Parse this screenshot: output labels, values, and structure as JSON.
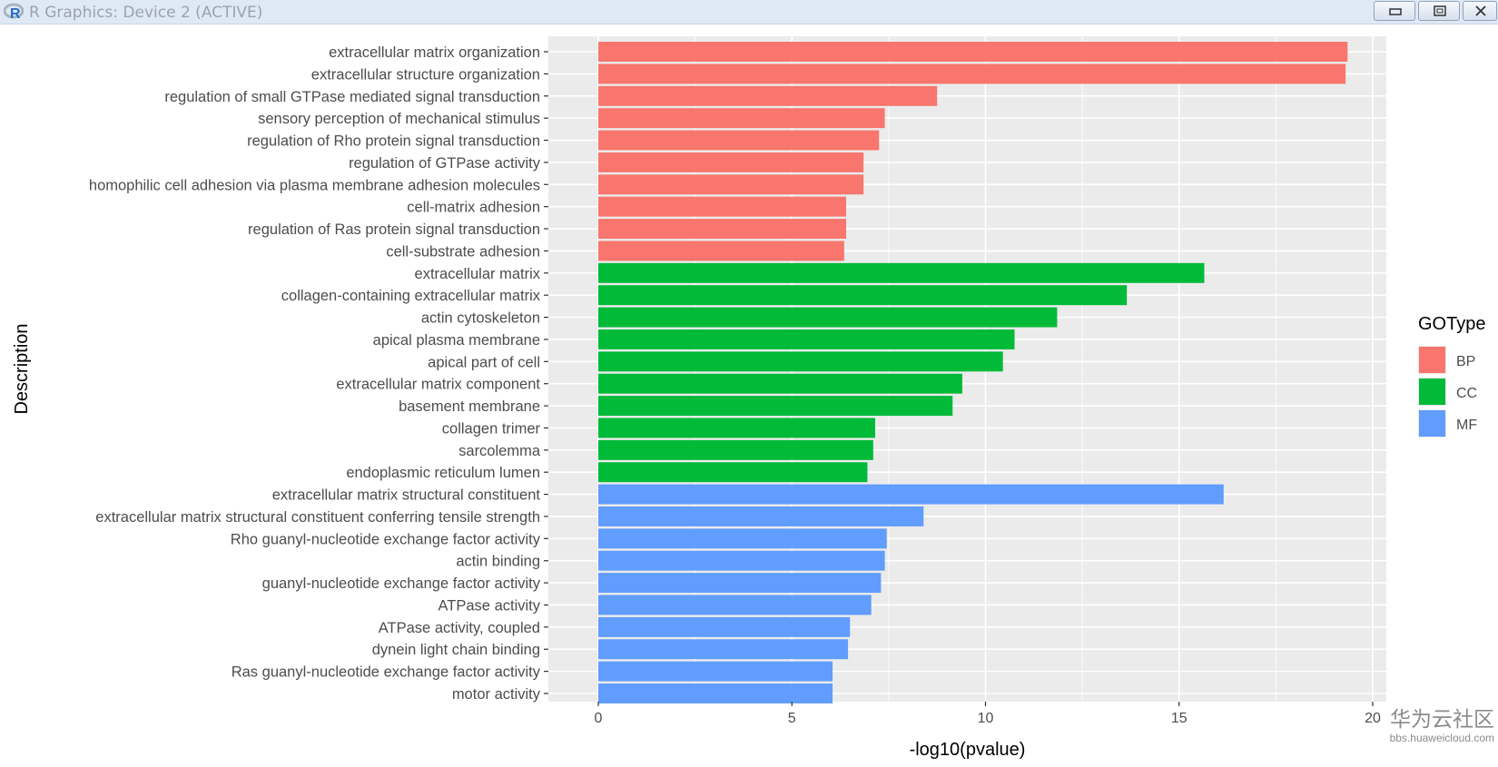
{
  "window": {
    "title": "R Graphics: Device 2 (ACTIVE)"
  },
  "watermark": {
    "brand": "华为云社区",
    "url": "bbs.huaweicloud.com"
  },
  "chart_data": {
    "type": "bar",
    "orientation": "horizontal",
    "xlabel": "-log10(pvalue)",
    "ylabel": "Description",
    "xlim": [
      0,
      20
    ],
    "xticks": [
      0,
      5,
      10,
      15,
      20
    ],
    "legend": {
      "title": "GOType",
      "position": "right",
      "entries": [
        {
          "name": "BP",
          "color": "#F8766D"
        },
        {
          "name": "CC",
          "color": "#00BA38"
        },
        {
          "name": "MF",
          "color": "#619CFF"
        }
      ]
    },
    "colors": {
      "panel_bg": "#EBEBEB",
      "grid": "#FFFFFF",
      "text": "#4D4D4D",
      "title": "#000000"
    },
    "categories": [
      "extracellular matrix organization",
      "extracellular structure organization",
      "regulation of small GTPase mediated signal transduction",
      "sensory perception of mechanical stimulus",
      "regulation of Rho protein signal transduction",
      "regulation of GTPase activity",
      "homophilic cell adhesion via plasma membrane adhesion molecules",
      "cell-matrix adhesion",
      "regulation of Ras protein signal transduction",
      "cell-substrate adhesion",
      "extracellular matrix",
      "collagen-containing extracellular matrix",
      "actin cytoskeleton",
      "apical plasma membrane",
      "apical part of cell",
      "extracellular matrix component",
      "basement membrane",
      "collagen trimer",
      "sarcolemma",
      "endoplasmic reticulum lumen",
      "extracellular matrix structural constituent",
      "extracellular matrix structural constituent conferring tensile strength",
      "Rho guanyl-nucleotide exchange factor activity",
      "actin binding",
      "guanyl-nucleotide exchange factor activity",
      "ATPase activity",
      "ATPase activity, coupled",
      "dynein light chain binding",
      "Ras guanyl-nucleotide exchange factor activity",
      "motor activity"
    ],
    "values": [
      19.35,
      19.3,
      8.75,
      7.4,
      7.25,
      6.85,
      6.85,
      6.4,
      6.4,
      6.35,
      15.65,
      13.65,
      11.85,
      10.75,
      10.45,
      9.4,
      9.15,
      7.15,
      7.1,
      6.95,
      16.15,
      8.4,
      7.45,
      7.4,
      7.3,
      7.05,
      6.5,
      6.45,
      6.05,
      6.05
    ],
    "groups": [
      "BP",
      "BP",
      "BP",
      "BP",
      "BP",
      "BP",
      "BP",
      "BP",
      "BP",
      "BP",
      "CC",
      "CC",
      "CC",
      "CC",
      "CC",
      "CC",
      "CC",
      "CC",
      "CC",
      "CC",
      "MF",
      "MF",
      "MF",
      "MF",
      "MF",
      "MF",
      "MF",
      "MF",
      "MF",
      "MF"
    ]
  }
}
